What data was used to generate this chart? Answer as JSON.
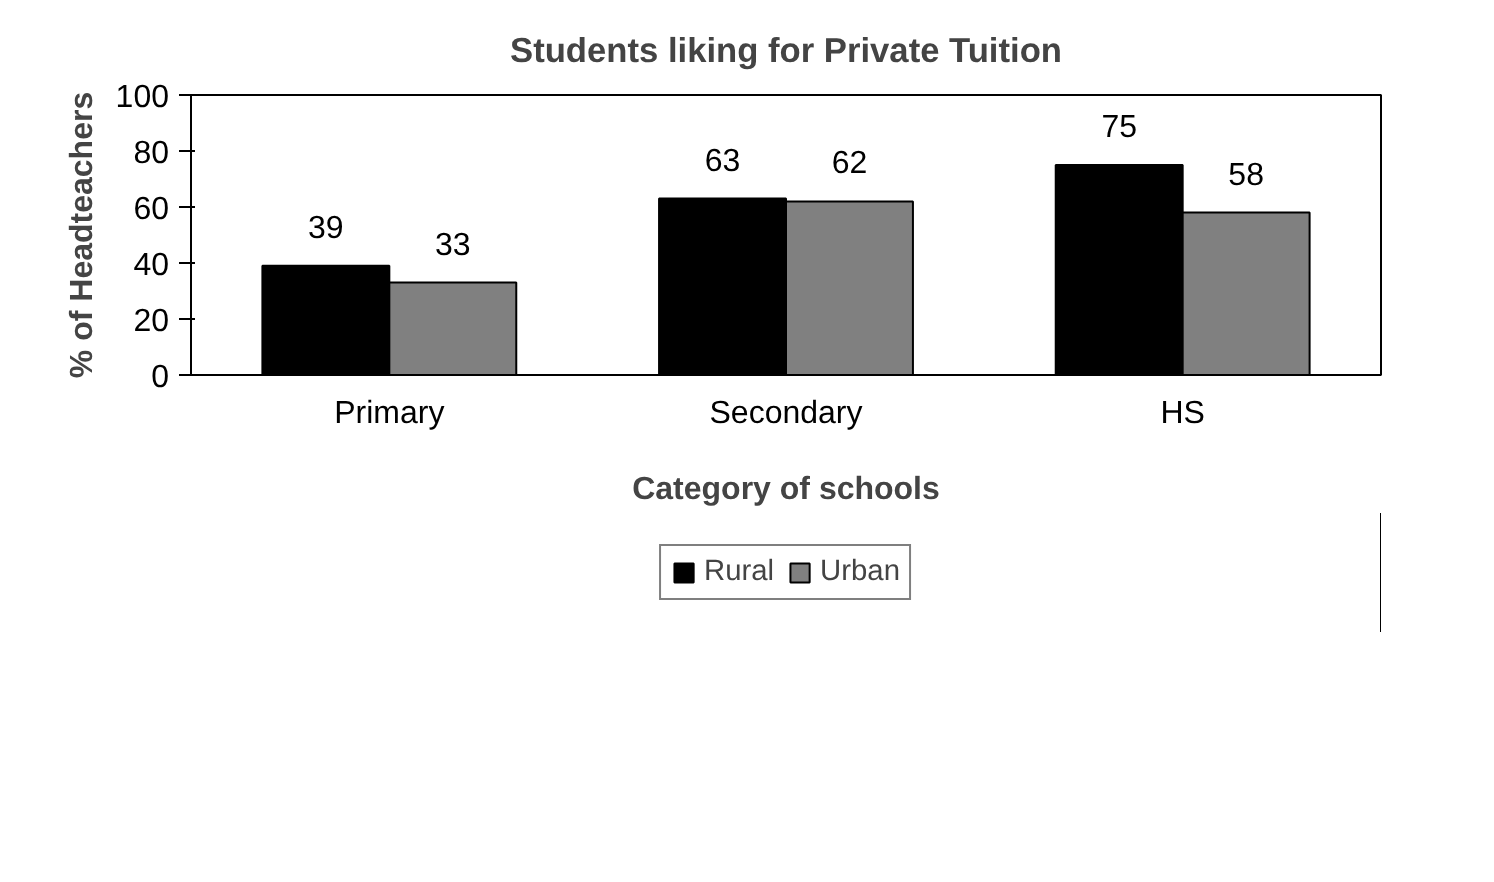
{
  "chart_data": {
    "type": "bar",
    "title": "Students liking for Private Tuition",
    "xlabel": "Category of schools",
    "ylabel": "% of Headteachers",
    "categories": [
      "Primary",
      "Secondary",
      "HS"
    ],
    "series": [
      {
        "name": "Rural",
        "color": "#000000",
        "values": [
          39,
          63,
          75
        ]
      },
      {
        "name": "Urban",
        "color": "#808080",
        "values": [
          33,
          62,
          58
        ]
      }
    ],
    "ylim": [
      0,
      100
    ],
    "yticks": [
      0,
      20,
      40,
      60,
      80,
      100
    ],
    "data_labels": true,
    "legend": "bottom"
  }
}
